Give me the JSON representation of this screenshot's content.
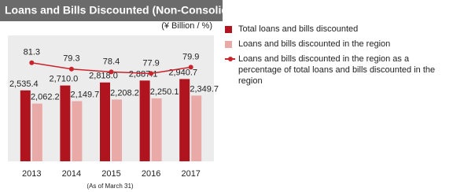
{
  "chart_data": {
    "type": "bar",
    "title": "Loans and Bills Discounted (Non-Consolidated)",
    "unit": "(¥ Billion / %)",
    "note": "(As of March 31)",
    "categories": [
      "2013",
      "2014",
      "2015",
      "2016",
      "2017"
    ],
    "ylim": [
      0,
      4500
    ],
    "y2lim": [
      50,
      90
    ],
    "series": [
      {
        "name": "Total loans and bills discounted",
        "color": "#b0141e",
        "values": [
          2535.4,
          2710.0,
          2818.0,
          2887.1,
          2940.7
        ],
        "value_labels": [
          "2,535.4",
          "2,710.0",
          "2,818.0",
          "2,887.1",
          "2,940.7"
        ]
      },
      {
        "name": "Loans and bills discounted in  the region",
        "color": "#e9a9a6",
        "values": [
          2062.2,
          2149.7,
          2208.2,
          2250.1,
          2349.7
        ],
        "value_labels": [
          "2,062.2",
          "2,149.7",
          "2,208.2",
          "2,250.1",
          "2,349.7"
        ]
      },
      {
        "name": "Loans and bills discounted in the region as a percentage of total loans and bills discounted in the region",
        "color": "#c8242c",
        "type": "line",
        "axis": "y2",
        "values": [
          81.3,
          79.3,
          78.4,
          77.9,
          79.9
        ]
      }
    ]
  }
}
